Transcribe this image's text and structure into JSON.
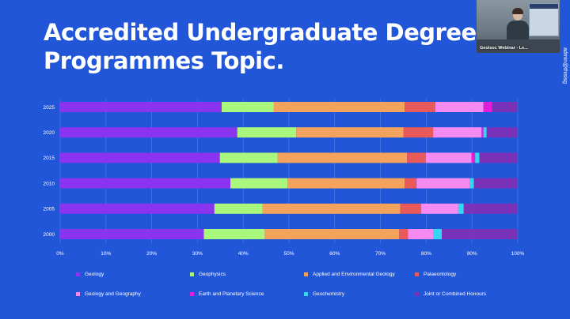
{
  "slide": {
    "title_line1": "Accredited Undergraduate Degree",
    "title_line2": "Programmes Topic."
  },
  "webcam": {
    "label": "Geolsoc Webinar - Le..."
  },
  "side_handle": "admin@thisisg",
  "chart_data": {
    "type": "bar",
    "orientation": "horizontal",
    "stacked": true,
    "normalized_percent": true,
    "categories": [
      "2025",
      "2020",
      "2015",
      "2010",
      "2005",
      "2000"
    ],
    "xlim": [
      0,
      100
    ],
    "xticks": [
      "0%",
      "10%",
      "20%",
      "30%",
      "40%",
      "50%",
      "60%",
      "70%",
      "80%",
      "90%",
      "100%"
    ],
    "grid": true,
    "legend_position": "bottom",
    "series": [
      {
        "name": "Geology",
        "color": "#8a34f0",
        "values": [
          35.3,
          38.7,
          34.9,
          37.2,
          33.7,
          31.4
        ]
      },
      {
        "name": "Geophysics",
        "color": "#a9f77c",
        "values": [
          11.4,
          12.9,
          12.6,
          12.5,
          10.5,
          13.3
        ]
      },
      {
        "name": "Applied and Environmental Geology",
        "color": "#f4a35c",
        "values": [
          28.6,
          23.4,
          28.3,
          25.6,
          30.1,
          29.4
        ]
      },
      {
        "name": "Palaeontology",
        "color": "#e85a5a",
        "values": [
          6.7,
          6.5,
          4.1,
          2.6,
          4.6,
          1.9
        ]
      },
      {
        "name": "Geology and Geography",
        "color": "#f58bf0",
        "values": [
          10.5,
          10.6,
          10.0,
          11.6,
          8.1,
          5.6
        ]
      },
      {
        "name": "Earth and Planetary Science",
        "color": "#e21fd8",
        "values": [
          1.9,
          0.4,
          0.8,
          0.0,
          0.0,
          0.0
        ]
      },
      {
        "name": "Geochemistry",
        "color": "#35d6f0",
        "values": [
          0.0,
          0.7,
          0.9,
          0.9,
          1.2,
          1.8
        ]
      },
      {
        "name": "Joint or Combined Honours",
        "color": "#7a33b8",
        "values": [
          5.6,
          6.8,
          8.4,
          9.6,
          11.8,
          16.6
        ]
      }
    ]
  }
}
